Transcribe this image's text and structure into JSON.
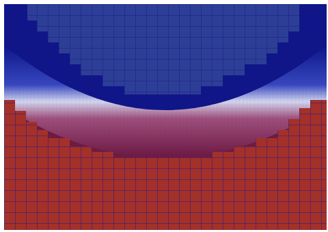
{
  "view": {
    "kind": "adaptive-mesh-field",
    "colormap": {
      "low": "#2d3e96",
      "low_dark": "#10168a",
      "mid": "#e6ecff",
      "high": "#a4302a",
      "high_dark": "#7d1e33",
      "mesh_line": "#1a1c8a"
    }
  }
}
